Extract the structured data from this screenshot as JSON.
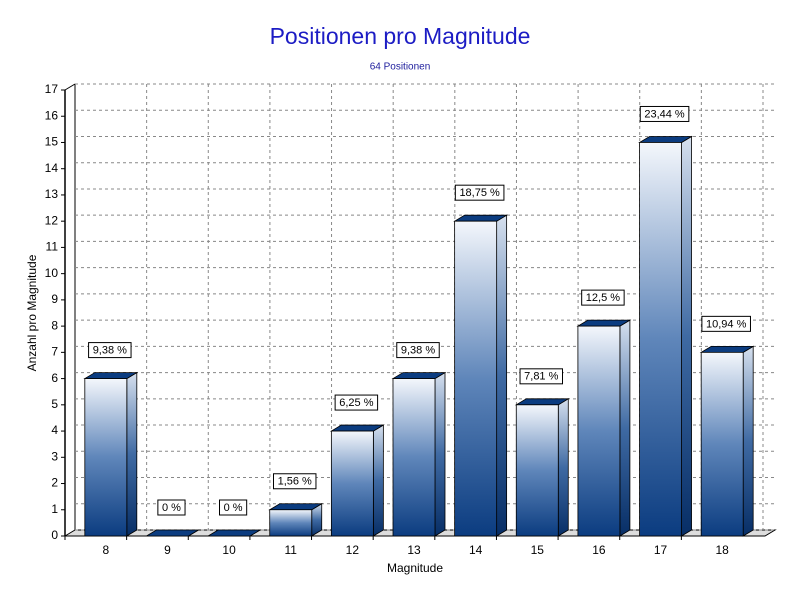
{
  "chart_data": {
    "type": "bar3d",
    "title": "Positionen pro Magnitude",
    "subtitle": "64 Positionen",
    "x_label": "Magnitude",
    "y_label": "Anzahl pro Magnitude",
    "categories": [
      "8",
      "9",
      "10",
      "11",
      "12",
      "13",
      "14",
      "15",
      "16",
      "17",
      "18"
    ],
    "values": [
      6,
      0,
      0,
      1,
      4,
      6,
      12,
      5,
      8,
      15,
      7
    ],
    "data_labels": [
      "9,38 %",
      "0 %",
      "0 %",
      "1,56 %",
      "6,25 %",
      "9,38 %",
      "18,75 %",
      "7,81 %",
      "12,5 %",
      "23,44 %",
      "10,94 %"
    ],
    "color": "#0b3c80",
    "ylim": [
      0,
      17
    ],
    "yticks": [
      0,
      1,
      2,
      3,
      4,
      5,
      6,
      7,
      8,
      9,
      10,
      11,
      12,
      13,
      14,
      15,
      16,
      17
    ],
    "grid": true
  }
}
